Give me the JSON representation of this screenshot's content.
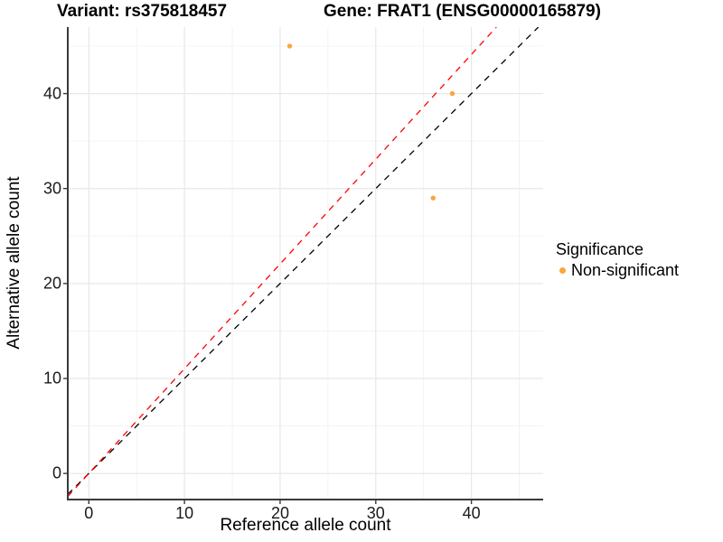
{
  "titles": {
    "variant": "Variant: rs375818457",
    "gene": "Gene: FRAT1 (ENSG00000165879)"
  },
  "axes": {
    "x_label": "Reference allele count",
    "y_label": "Alternative allele count"
  },
  "legend": {
    "title": "Significance",
    "items": [
      {
        "label": "Non-significant",
        "color": "#F9A63D"
      }
    ]
  },
  "colors": {
    "point_orange": "#F9A63D",
    "identity_line": "#000000",
    "ratio_line": "#FF0000",
    "grid_major": "#E8E8E8",
    "grid_minor": "#F0F0F0",
    "axis_line": "#3a3a3a",
    "tick_mark": "#3a3a3a"
  },
  "chart_data": {
    "type": "scatter",
    "title_left": "Variant: rs375818457",
    "title_right": "Gene: FRAT1 (ENSG00000165879)",
    "xlabel": "Reference allele count",
    "ylabel": "Alternative allele count",
    "xlim": [
      -2.2,
      47.5
    ],
    "ylim": [
      -2.75,
      47.0
    ],
    "x_ticks": [
      0,
      10,
      20,
      30,
      40
    ],
    "y_ticks": [
      0,
      10,
      20,
      30,
      40
    ],
    "x_minor_ticks": [
      5,
      15,
      25,
      35,
      45
    ],
    "y_minor_ticks": [
      5,
      15,
      25,
      35,
      45
    ],
    "grid": "major+minor",
    "legend_position": "right",
    "series": [
      {
        "name": "Non-significant",
        "color": "#F9A63D",
        "marker": "circle",
        "points": [
          {
            "x": 21,
            "y": 45
          },
          {
            "x": 38,
            "y": 40
          },
          {
            "x": 36,
            "y": 29
          }
        ]
      }
    ],
    "reference_lines": [
      {
        "name": "identity-line",
        "slope": 1.0,
        "intercept": 0,
        "color": "#000000",
        "style": "dashed"
      },
      {
        "name": "allelic-ratio-line",
        "slope": 1.103,
        "intercept": 0,
        "color": "#FF0000",
        "style": "dashed"
      }
    ]
  }
}
